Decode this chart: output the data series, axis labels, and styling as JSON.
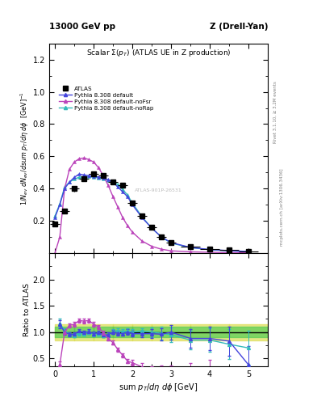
{
  "title_left": "13000 GeV pp",
  "title_right": "Z (Drell-Yan)",
  "plot_title": "Scalar Σ(p_{T}) (ATLAS UE in Z production)",
  "ylabel_main": "1/N$_{ev}$ dN$_{ev}$/dsum p$_T$/dη dϕ  [GeV]$^{-1}$",
  "ylabel_ratio": "Ratio to ATLAS",
  "xlabel": "sum p$_T$/dη dϕ [GeV]",
  "right_label1": "Rivet 3.1.10, ≥ 3.2M events",
  "right_label2": "mcplots.cern.ch [arXiv:1306.3436]",
  "watermark": "ATLAS-901P-26531",
  "atlas_x": [
    0.0,
    0.25,
    0.5,
    0.75,
    1.0,
    1.25,
    1.5,
    1.75,
    2.0,
    2.25,
    2.5,
    2.75,
    3.0,
    3.5,
    4.0,
    4.5,
    5.0
  ],
  "atlas_y": [
    0.18,
    0.26,
    0.4,
    0.46,
    0.49,
    0.48,
    0.44,
    0.42,
    0.31,
    0.23,
    0.16,
    0.1,
    0.065,
    0.04,
    0.025,
    0.018,
    0.012
  ],
  "atlas_xerr": [
    0.125,
    0.125,
    0.125,
    0.125,
    0.125,
    0.125,
    0.125,
    0.125,
    0.125,
    0.125,
    0.125,
    0.125,
    0.125,
    0.25,
    0.25,
    0.25,
    0.25
  ],
  "atlas_yerr": [
    0.012,
    0.015,
    0.018,
    0.015,
    0.015,
    0.015,
    0.015,
    0.015,
    0.015,
    0.012,
    0.01,
    0.008,
    0.005,
    0.003,
    0.003,
    0.002,
    0.002
  ],
  "py_default_x": [
    0.0,
    0.125,
    0.25,
    0.375,
    0.5,
    0.625,
    0.75,
    0.875,
    1.0,
    1.125,
    1.25,
    1.375,
    1.5,
    1.625,
    1.75,
    1.875,
    2.0,
    2.25,
    2.5,
    2.75,
    3.0,
    3.5,
    4.0,
    4.5,
    5.0
  ],
  "py_default_y": [
    0.22,
    0.3,
    0.4,
    0.44,
    0.47,
    0.49,
    0.485,
    0.48,
    0.475,
    0.472,
    0.465,
    0.455,
    0.44,
    0.41,
    0.38,
    0.35,
    0.3,
    0.22,
    0.155,
    0.1,
    0.065,
    0.035,
    0.022,
    0.015,
    0.01
  ],
  "py_nofsr_x": [
    0.0,
    0.125,
    0.25,
    0.375,
    0.5,
    0.625,
    0.75,
    0.875,
    1.0,
    1.125,
    1.25,
    1.375,
    1.5,
    1.625,
    1.75,
    1.875,
    2.0,
    2.25,
    2.5,
    2.75,
    3.0,
    3.5,
    4.0,
    4.5,
    5.0
  ],
  "py_nofsr_y": [
    0.0,
    0.1,
    0.4,
    0.52,
    0.565,
    0.585,
    0.59,
    0.58,
    0.565,
    0.53,
    0.48,
    0.42,
    0.35,
    0.285,
    0.22,
    0.17,
    0.13,
    0.075,
    0.042,
    0.024,
    0.014,
    0.008,
    0.005,
    0.003,
    0.002
  ],
  "py_norap_x": [
    0.0,
    0.125,
    0.25,
    0.375,
    0.5,
    0.625,
    0.75,
    0.875,
    1.0,
    1.125,
    1.25,
    1.375,
    1.5,
    1.625,
    1.75,
    1.875,
    2.0,
    2.25,
    2.5,
    2.75,
    3.0,
    3.5,
    4.0,
    4.5,
    5.0
  ],
  "py_norap_y": [
    0.23,
    0.305,
    0.41,
    0.44,
    0.46,
    0.47,
    0.475,
    0.475,
    0.47,
    0.467,
    0.46,
    0.452,
    0.442,
    0.425,
    0.395,
    0.36,
    0.31,
    0.225,
    0.155,
    0.1,
    0.062,
    0.034,
    0.021,
    0.014,
    0.009
  ],
  "ratio_default_x": [
    0.125,
    0.25,
    0.375,
    0.5,
    0.625,
    0.75,
    0.875,
    1.0,
    1.125,
    1.25,
    1.375,
    1.5,
    1.625,
    1.75,
    1.875,
    2.0,
    2.25,
    2.5,
    2.75,
    3.0,
    3.5,
    4.0,
    4.5,
    5.0
  ],
  "ratio_default_y": [
    1.15,
    1.0,
    0.96,
    0.96,
    1.02,
    0.99,
    1.01,
    0.97,
    0.99,
    0.95,
    0.95,
    1.0,
    0.98,
    0.97,
    1.0,
    0.97,
    0.97,
    0.97,
    0.96,
    1.0,
    0.88,
    0.88,
    0.83,
    0.38
  ],
  "ratio_default_yerr": [
    0.08,
    0.05,
    0.04,
    0.04,
    0.04,
    0.04,
    0.04,
    0.04,
    0.04,
    0.04,
    0.04,
    0.04,
    0.04,
    0.04,
    0.05,
    0.05,
    0.06,
    0.08,
    0.12,
    0.14,
    0.18,
    0.22,
    0.28,
    0.35
  ],
  "ratio_nofsr_x": [
    0.125,
    0.25,
    0.375,
    0.5,
    0.625,
    0.75,
    0.875,
    1.0,
    1.125,
    1.25,
    1.375,
    1.5,
    1.625,
    1.75,
    1.875,
    2.0,
    2.25,
    2.5,
    2.75,
    3.0,
    3.5,
    4.0
  ],
  "ratio_nofsr_y": [
    0.38,
    1.0,
    1.13,
    1.15,
    1.22,
    1.21,
    1.22,
    1.15,
    1.1,
    0.98,
    0.88,
    0.8,
    0.67,
    0.56,
    0.45,
    0.42,
    0.34,
    0.26,
    0.24,
    0.21,
    0.2,
    0.2
  ],
  "ratio_nofsr_yerr": [
    0.06,
    0.04,
    0.04,
    0.04,
    0.04,
    0.04,
    0.04,
    0.04,
    0.04,
    0.04,
    0.04,
    0.04,
    0.04,
    0.04,
    0.04,
    0.05,
    0.07,
    0.09,
    0.12,
    0.16,
    0.22,
    0.28
  ],
  "ratio_norap_x": [
    0.125,
    0.25,
    0.375,
    0.5,
    0.625,
    0.75,
    0.875,
    1.0,
    1.125,
    1.25,
    1.375,
    1.5,
    1.625,
    1.75,
    1.875,
    2.0,
    2.25,
    2.5,
    2.75,
    3.0,
    3.5,
    4.0,
    4.5,
    5.0
  ],
  "ratio_norap_y": [
    1.17,
    1.03,
    0.96,
    0.94,
    0.98,
    0.97,
    1.0,
    0.96,
    0.97,
    0.94,
    0.95,
    1.01,
    1.03,
    1.01,
    1.02,
    1.0,
    1.02,
    1.0,
    0.98,
    0.95,
    0.85,
    0.85,
    0.77,
    0.7
  ],
  "ratio_norap_yerr": [
    0.08,
    0.05,
    0.04,
    0.04,
    0.04,
    0.04,
    0.04,
    0.04,
    0.04,
    0.04,
    0.04,
    0.04,
    0.04,
    0.04,
    0.05,
    0.05,
    0.06,
    0.09,
    0.12,
    0.14,
    0.18,
    0.22,
    0.28,
    0.32
  ],
  "ratio_nofsr_start_x": 0.0,
  "ratio_nofsr_start_y": 0.0,
  "band_x_lo": [
    0.0,
    0.5,
    1.0,
    1.5,
    2.0,
    2.5,
    3.0,
    3.5,
    4.0,
    4.5
  ],
  "band_x_hi": [
    0.5,
    1.0,
    1.5,
    2.0,
    2.5,
    3.0,
    3.5,
    4.0,
    4.5,
    5.5
  ],
  "band_yellow_lo": [
    0.85,
    0.85,
    0.85,
    0.85,
    0.85,
    0.85,
    0.85,
    0.85,
    0.85,
    0.85
  ],
  "band_yellow_hi": [
    1.15,
    1.15,
    1.15,
    1.15,
    1.15,
    1.15,
    1.15,
    1.15,
    1.15,
    1.15
  ],
  "band_green_lo": [
    0.9,
    0.9,
    0.9,
    0.9,
    0.9,
    0.9,
    0.9,
    0.9,
    0.9,
    0.9
  ],
  "band_green_hi": [
    1.1,
    1.1,
    1.1,
    1.1,
    1.1,
    1.1,
    1.1,
    1.1,
    1.1,
    1.1
  ],
  "color_atlas": "#000000",
  "color_default": "#4444dd",
  "color_nofsr": "#bb44bb",
  "color_norap": "#33bbbb",
  "color_green_band": "#55cc55",
  "color_yellow_band": "#dddd55",
  "xlim": [
    -0.15,
    5.5
  ],
  "ylim_main": [
    0.0,
    1.3
  ],
  "ylim_ratio": [
    0.35,
    2.5
  ],
  "yticks_main": [
    0.2,
    0.4,
    0.6,
    0.8,
    1.0,
    1.2
  ],
  "yticks_ratio": [
    0.5,
    1.0,
    1.5,
    2.0
  ],
  "xticks": [
    0,
    1,
    2,
    3,
    4,
    5
  ]
}
